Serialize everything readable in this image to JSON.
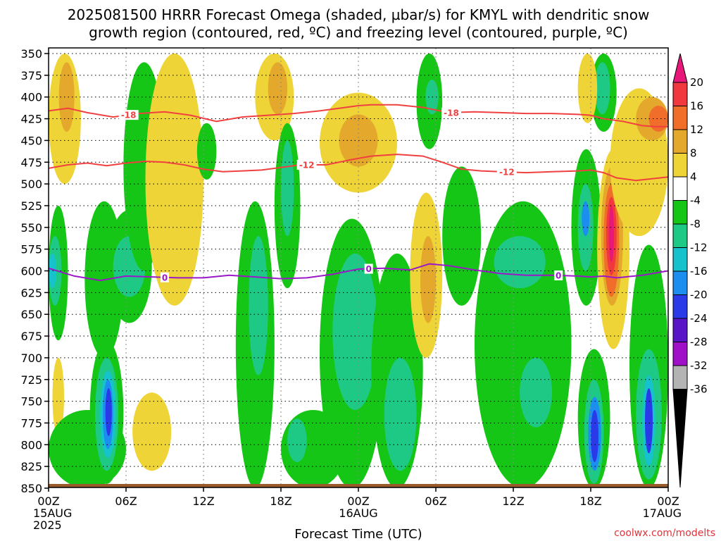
{
  "header": {
    "title_line1": "2025081500 HRRR Forecast Omega (shaded, µbar/s) for KMYL with dendritic snow",
    "title_line2": "growth region (contoured, red, ºC) and freezing level (contoured, purple, ºC)"
  },
  "footer": {
    "xlabel": "Forecast Time (UTC)",
    "credit": "coolwx.com/modelts"
  },
  "chart_data": {
    "type": "heatmap",
    "title": "2025081500 HRRR Forecast Omega (shaded, µbar/s) for KMYL with dendritic snow growth region (contoured, red, ºC) and freezing level (contoured, purple, ºC)",
    "xlabel": "Forecast Time (UTC)",
    "ylabel": "",
    "x_hours": [
      0,
      6,
      12,
      18,
      24,
      30,
      36,
      42,
      48
    ],
    "x_tick_labels": [
      [
        "00Z",
        "15AUG",
        "2025"
      ],
      [
        "06Z"
      ],
      [
        "12Z"
      ],
      [
        "18Z"
      ],
      [
        "00Z",
        "16AUG"
      ],
      [
        "06Z"
      ],
      [
        "12Z"
      ],
      [
        "18Z"
      ],
      [
        "00Z",
        "17AUG"
      ]
    ],
    "y_levels": [
      350,
      375,
      400,
      425,
      450,
      475,
      500,
      525,
      550,
      575,
      600,
      625,
      650,
      675,
      700,
      725,
      750,
      775,
      800,
      825,
      850
    ],
    "ylim": [
      350,
      850
    ],
    "xlim": [
      0,
      48
    ],
    "grid": true,
    "colorbar": {
      "levels": [
        20,
        16,
        12,
        8,
        4,
        -4,
        -8,
        -12,
        -16,
        -20,
        -24,
        -28,
        -32,
        -36
      ],
      "bands": [
        {
          "from": 20,
          "to": 24,
          "color": "#e8177a"
        },
        {
          "from": 16,
          "to": 20,
          "color": "#f0383e"
        },
        {
          "from": 12,
          "to": 16,
          "color": "#f06d2a"
        },
        {
          "from": 8,
          "to": 12,
          "color": "#e4a92c"
        },
        {
          "from": 4,
          "to": 8,
          "color": "#eed437"
        },
        {
          "from": -4,
          "to": 4,
          "color": "#ffffff"
        },
        {
          "from": -8,
          "to": -4,
          "color": "#16c616"
        },
        {
          "from": -12,
          "to": -8,
          "color": "#1ec986"
        },
        {
          "from": -16,
          "to": -12,
          "color": "#16c2cc"
        },
        {
          "from": -20,
          "to": -16,
          "color": "#1c8ef0"
        },
        {
          "from": -24,
          "to": -20,
          "color": "#2a3ae8"
        },
        {
          "from": -28,
          "to": -24,
          "color": "#5a14c8"
        },
        {
          "from": -32,
          "to": -28,
          "color": "#a010c8"
        },
        {
          "from": -36,
          "to": -32,
          "color": "#b3b3b3"
        },
        {
          "from": -40,
          "to": -36,
          "color": "#000000"
        }
      ]
    },
    "contours": [
      {
        "name": "-18",
        "color": "#f04040",
        "labels": [
          {
            "text": "-18",
            "hour": 6.2
          },
          {
            "text": "-18",
            "hour": 31.2
          }
        ],
        "points": [
          [
            0,
            416
          ],
          [
            1.5,
            413
          ],
          [
            3,
            418
          ],
          [
            5,
            423
          ],
          [
            7,
            419
          ],
          [
            9,
            417
          ],
          [
            11,
            421
          ],
          [
            13,
            428
          ],
          [
            15,
            423
          ],
          [
            17,
            421
          ],
          [
            19,
            419
          ],
          [
            21,
            416
          ],
          [
            23,
            412
          ],
          [
            24,
            410
          ],
          [
            25,
            409
          ],
          [
            27,
            409
          ],
          [
            29,
            412
          ],
          [
            31,
            418
          ],
          [
            33,
            417
          ],
          [
            35,
            418
          ],
          [
            37,
            419
          ],
          [
            39,
            419
          ],
          [
            41,
            420
          ],
          [
            42,
            421
          ],
          [
            43,
            425
          ],
          [
            44.5,
            428
          ],
          [
            46,
            433
          ],
          [
            47,
            434
          ],
          [
            48,
            434
          ]
        ]
      },
      {
        "name": "-12",
        "color": "#f04040",
        "labels": [
          {
            "text": "-12",
            "hour": 20.0
          },
          {
            "text": "-12",
            "hour": 35.5
          }
        ],
        "points": [
          [
            0,
            482
          ],
          [
            1.5,
            478
          ],
          [
            3,
            476
          ],
          [
            4.5,
            479
          ],
          [
            6,
            476
          ],
          [
            7.5,
            474
          ],
          [
            9,
            475
          ],
          [
            10.5,
            478
          ],
          [
            12,
            483
          ],
          [
            13.5,
            486
          ],
          [
            15,
            485
          ],
          [
            16.5,
            484
          ],
          [
            18,
            481
          ],
          [
            19.5,
            478
          ],
          [
            21.5,
            478
          ],
          [
            23.5,
            472
          ],
          [
            25,
            468
          ],
          [
            27,
            466
          ],
          [
            29,
            468
          ],
          [
            30.5,
            475
          ],
          [
            32,
            483
          ],
          [
            33.5,
            485
          ],
          [
            35,
            486
          ],
          [
            37,
            487
          ],
          [
            39,
            486
          ],
          [
            41,
            485
          ],
          [
            42,
            484
          ],
          [
            43,
            487
          ],
          [
            44,
            493
          ],
          [
            45.5,
            496
          ],
          [
            48,
            492
          ]
        ]
      },
      {
        "name": "0",
        "color": "#9a18c8",
        "labels": [
          {
            "text": "0",
            "hour": 9.0
          },
          {
            "text": "0",
            "hour": 24.8
          },
          {
            "text": "0",
            "hour": 39.5
          }
        ],
        "points": [
          [
            0,
            597
          ],
          [
            2,
            606
          ],
          [
            4,
            611
          ],
          [
            6,
            606
          ],
          [
            8,
            607
          ],
          [
            10,
            608
          ],
          [
            12,
            608
          ],
          [
            14,
            605
          ],
          [
            16,
            607
          ],
          [
            18,
            609
          ],
          [
            20,
            608
          ],
          [
            22,
            604
          ],
          [
            24,
            598
          ],
          [
            26,
            597
          ],
          [
            28,
            599
          ],
          [
            29.5,
            592
          ],
          [
            31,
            594
          ],
          [
            33,
            599
          ],
          [
            35,
            603
          ],
          [
            37,
            605
          ],
          [
            39,
            605
          ],
          [
            41,
            606
          ],
          [
            42,
            607
          ],
          [
            43,
            606
          ],
          [
            44,
            608
          ],
          [
            46,
            605
          ],
          [
            48,
            600
          ]
        ]
      }
    ],
    "omega_features": [
      {
        "t0": 0,
        "t1": 2.5,
        "p0": 350,
        "p1": 500,
        "value": 6
      },
      {
        "t0": 0.8,
        "t1": 2.0,
        "p0": 360,
        "p1": 440,
        "value": 10
      },
      {
        "t0": 0,
        "t1": 1.5,
        "p0": 525,
        "p1": 680,
        "value": -6
      },
      {
        "t0": 0,
        "t1": 1.0,
        "p0": 560,
        "p1": 640,
        "value": -10
      },
      {
        "t0": 0,
        "t1": 0.6,
        "p0": 580,
        "p1": 620,
        "value": -14
      },
      {
        "t0": 0.3,
        "t1": 1.2,
        "p0": 700,
        "p1": 790,
        "value": 6
      },
      {
        "t0": 0,
        "t1": 6.0,
        "p0": 760,
        "p1": 850,
        "value": -6
      },
      {
        "t0": 2.8,
        "t1": 5.8,
        "p0": 520,
        "p1": 700,
        "value": -6
      },
      {
        "t0": 3.2,
        "t1": 5.8,
        "p0": 680,
        "p1": 845,
        "value": -6
      },
      {
        "t0": 3.6,
        "t1": 5.4,
        "p0": 700,
        "p1": 830,
        "value": -10
      },
      {
        "t0": 4.0,
        "t1": 5.2,
        "p0": 715,
        "p1": 815,
        "value": -14
      },
      {
        "t0": 4.2,
        "t1": 5.0,
        "p0": 725,
        "p1": 805,
        "value": -18
      },
      {
        "t0": 4.4,
        "t1": 4.9,
        "p0": 735,
        "p1": 790,
        "value": -22
      },
      {
        "t0": 4.5,
        "t1": 8.0,
        "p0": 530,
        "p1": 660,
        "value": -6
      },
      {
        "t0": 5.0,
        "t1": 7.5,
        "p0": 560,
        "p1": 630,
        "value": -10
      },
      {
        "t0": 5.8,
        "t1": 9.0,
        "p0": 360,
        "p1": 600,
        "value": -6
      },
      {
        "t0": 6.5,
        "t1": 9.5,
        "p0": 740,
        "p1": 830,
        "value": 6
      },
      {
        "t0": 7.5,
        "t1": 12.0,
        "p0": 350,
        "p1": 640,
        "value": 6
      },
      {
        "t0": 11.5,
        "t1": 13.0,
        "p0": 430,
        "p1": 495,
        "value": -6
      },
      {
        "t0": 14.5,
        "t1": 17.5,
        "p0": 520,
        "p1": 850,
        "value": -6
      },
      {
        "t0": 15.5,
        "t1": 17.0,
        "p0": 560,
        "p1": 720,
        "value": -10
      },
      {
        "t0": 16.0,
        "t1": 19.0,
        "p0": 350,
        "p1": 450,
        "value": 6
      },
      {
        "t0": 17.0,
        "t1": 18.5,
        "p0": 360,
        "p1": 420,
        "value": 10
      },
      {
        "t0": 17.5,
        "t1": 19.5,
        "p0": 430,
        "p1": 620,
        "value": -6
      },
      {
        "t0": 18.0,
        "t1": 19.0,
        "p0": 450,
        "p1": 560,
        "value": -10
      },
      {
        "t0": 18.0,
        "t1": 23.0,
        "p0": 760,
        "p1": 850,
        "value": -6
      },
      {
        "t0": 18.5,
        "t1": 20.0,
        "p0": 770,
        "p1": 820,
        "value": -10
      },
      {
        "t0": 21.0,
        "t1": 26.0,
        "p0": 540,
        "p1": 850,
        "value": -6
      },
      {
        "t0": 22.0,
        "t1": 25.5,
        "p0": 580,
        "p1": 760,
        "value": -10
      },
      {
        "t0": 21.0,
        "t1": 27.0,
        "p0": 395,
        "p1": 510,
        "value": 6
      },
      {
        "t0": 22.5,
        "t1": 25.5,
        "p0": 420,
        "p1": 480,
        "value": 10
      },
      {
        "t0": 25.0,
        "t1": 29.0,
        "p0": 580,
        "p1": 850,
        "value": -6
      },
      {
        "t0": 26.0,
        "t1": 28.5,
        "p0": 700,
        "p1": 830,
        "value": -10
      },
      {
        "t0": 28.0,
        "t1": 30.5,
        "p0": 510,
        "p1": 700,
        "value": 6
      },
      {
        "t0": 28.8,
        "t1": 30.0,
        "p0": 560,
        "p1": 660,
        "value": 10
      },
      {
        "t0": 28.5,
        "t1": 30.5,
        "p0": 350,
        "p1": 460,
        "value": -6
      },
      {
        "t0": 29.2,
        "t1": 30.2,
        "p0": 380,
        "p1": 420,
        "value": -10
      },
      {
        "t0": 30.5,
        "t1": 33.5,
        "p0": 480,
        "p1": 640,
        "value": -6
      },
      {
        "t0": 33.0,
        "t1": 40.5,
        "p0": 520,
        "p1": 850,
        "value": -6
      },
      {
        "t0": 34.5,
        "t1": 38.5,
        "p0": 560,
        "p1": 620,
        "value": -10
      },
      {
        "t0": 36.5,
        "t1": 39.0,
        "p0": 700,
        "p1": 780,
        "value": -10
      },
      {
        "t0": 41.0,
        "t1": 43.5,
        "p0": 690,
        "p1": 850,
        "value": -6
      },
      {
        "t0": 41.5,
        "t1": 43.0,
        "p0": 725,
        "p1": 845,
        "value": -10
      },
      {
        "t0": 41.8,
        "t1": 42.8,
        "p0": 745,
        "p1": 830,
        "value": -18
      },
      {
        "t0": 42.0,
        "t1": 42.6,
        "p0": 760,
        "p1": 820,
        "value": -22
      },
      {
        "t0": 40.5,
        "t1": 42.8,
        "p0": 460,
        "p1": 640,
        "value": -6
      },
      {
        "t0": 41.0,
        "t1": 42.2,
        "p0": 500,
        "p1": 600,
        "value": -12
      },
      {
        "t0": 41.3,
        "t1": 41.9,
        "p0": 520,
        "p1": 560,
        "value": -18
      },
      {
        "t0": 42.0,
        "t1": 44.0,
        "p0": 350,
        "p1": 440,
        "value": -6
      },
      {
        "t0": 42.3,
        "t1": 43.5,
        "p0": 360,
        "p1": 420,
        "value": -12
      },
      {
        "t0": 41.0,
        "t1": 42.5,
        "p0": 350,
        "p1": 430,
        "value": 6
      },
      {
        "t0": 42.5,
        "t1": 45.0,
        "p0": 460,
        "p1": 690,
        "value": 6
      },
      {
        "t0": 42.8,
        "t1": 44.5,
        "p0": 480,
        "p1": 640,
        "value": 10
      },
      {
        "t0": 43.0,
        "t1": 44.2,
        "p0": 500,
        "p1": 630,
        "value": 14
      },
      {
        "t0": 43.2,
        "t1": 44.0,
        "p0": 515,
        "p1": 605,
        "value": 18
      },
      {
        "t0": 43.4,
        "t1": 43.8,
        "p0": 525,
        "p1": 590,
        "value": 21
      },
      {
        "t0": 43.5,
        "t1": 48.0,
        "p0": 390,
        "p1": 560,
        "value": 6
      },
      {
        "t0": 45.5,
        "t1": 48.0,
        "p0": 400,
        "p1": 450,
        "value": 10
      },
      {
        "t0": 46.5,
        "t1": 48.0,
        "p0": 410,
        "p1": 440,
        "value": 13
      },
      {
        "t0": 45.0,
        "t1": 48.0,
        "p0": 570,
        "p1": 850,
        "value": -6
      },
      {
        "t0": 45.5,
        "t1": 47.5,
        "p0": 690,
        "p1": 840,
        "value": -10
      },
      {
        "t0": 46.0,
        "t1": 47.0,
        "p0": 720,
        "p1": 825,
        "value": -14
      },
      {
        "t0": 46.2,
        "t1": 46.8,
        "p0": 735,
        "p1": 810,
        "value": -22
      }
    ]
  }
}
